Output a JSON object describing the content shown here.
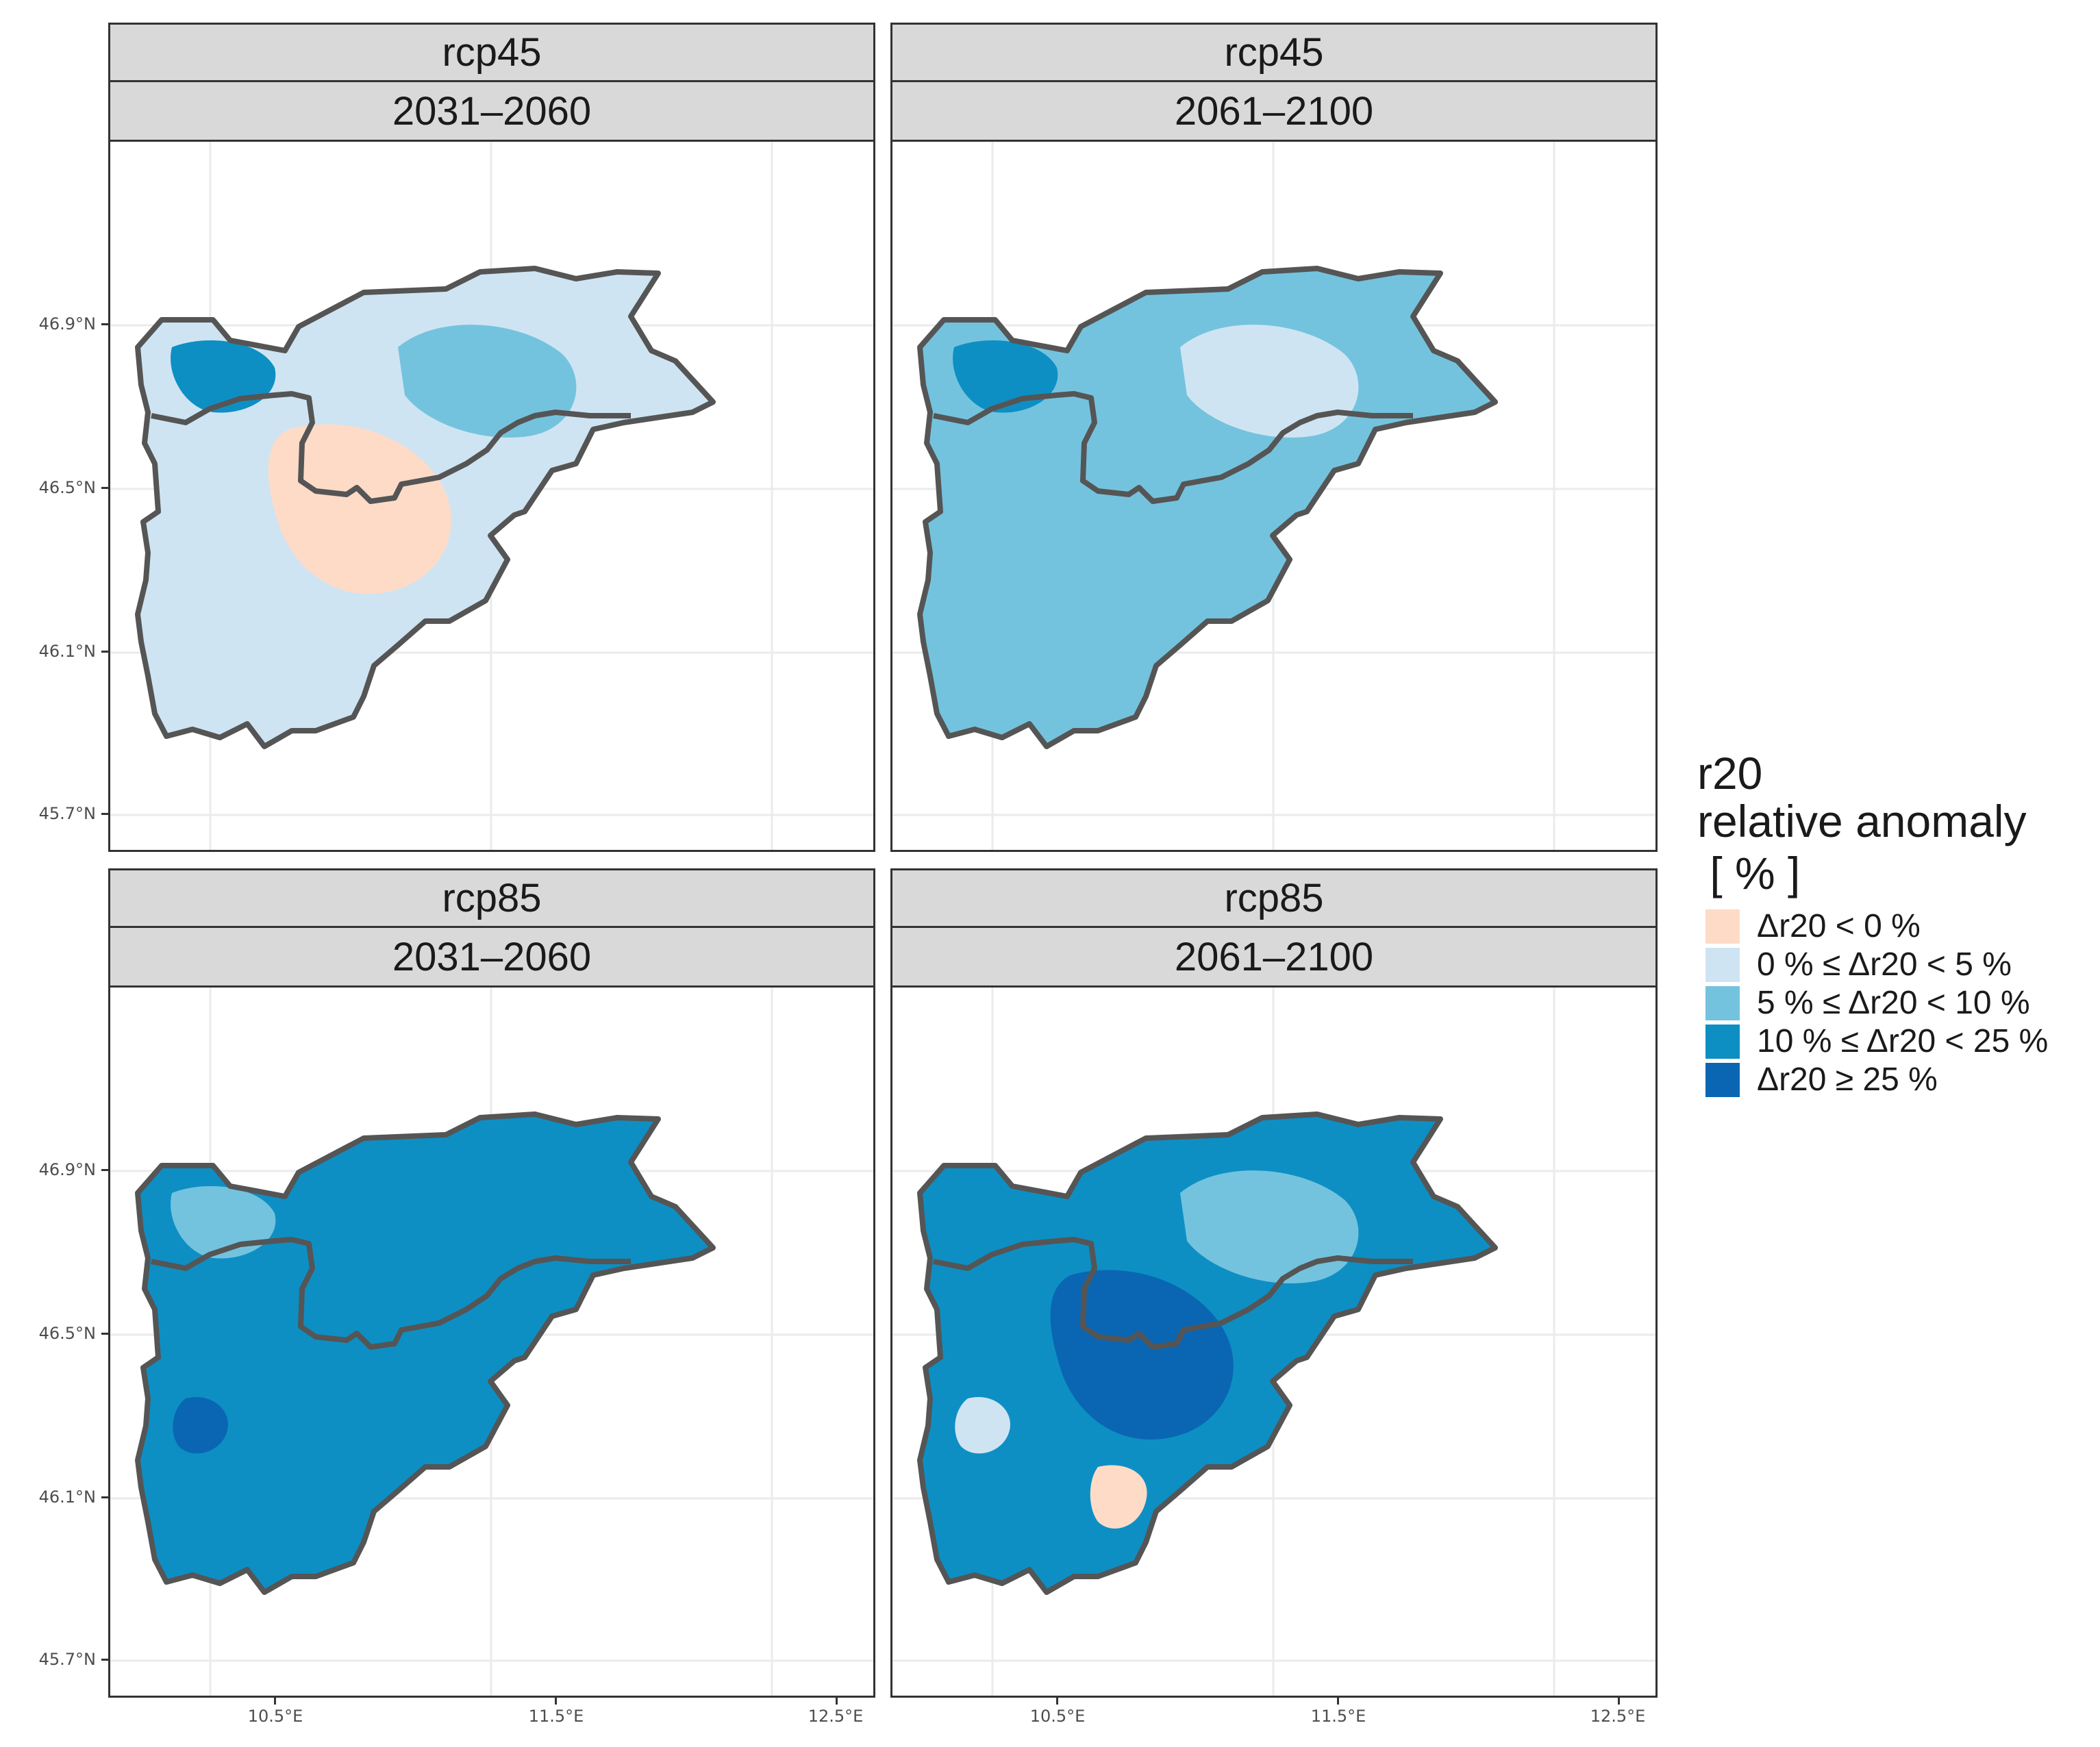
{
  "panels": [
    {
      "scenario": "rcp45",
      "period": "2031–2060",
      "dominant": "c1",
      "patches": [
        "c0",
        "c2",
        "c3"
      ]
    },
    {
      "scenario": "rcp45",
      "period": "2061–2100",
      "dominant": "c2",
      "patches": [
        "c1",
        "c3"
      ]
    },
    {
      "scenario": "rcp85",
      "period": "2031–2060",
      "dominant": "c3",
      "patches": [
        "c2",
        "c4"
      ]
    },
    {
      "scenario": "rcp85",
      "period": "2061–2100",
      "dominant": "c3",
      "patches": [
        "c1",
        "c0",
        "c4",
        "c2"
      ]
    }
  ],
  "axes": {
    "y_ticks": [
      "46.9°N",
      "46.5°N",
      "46.1°N",
      "45.7°N"
    ],
    "x_ticks": [
      "10.5°E",
      "11.5°E",
      "12.5°E"
    ]
  },
  "legend": {
    "title_line1": "r20",
    "title_line2": "relative anomaly",
    "title_line3": " [ % ]",
    "items": [
      {
        "label": "Δr20 < 0 %",
        "color": "#fddbc7"
      },
      {
        "label": "0 % ≤ Δr20 < 5 %",
        "color": "#cfe4f2"
      },
      {
        "label": "5 % ≤ Δr20 < 10 %",
        "color": "#74c3de"
      },
      {
        "label": "10 % ≤ Δr20 < 25 %",
        "color": "#0d8fc4"
      },
      {
        "label": "Δr20 ≥ 25 %",
        "color": "#0a66b2"
      }
    ]
  },
  "colors": {
    "c0": "#fddbc7",
    "c1": "#cfe4f2",
    "c2": "#74c3de",
    "c3": "#0d8fc4",
    "c4": "#0a66b2",
    "border": "#555555",
    "grid": "#ebebeb"
  }
}
